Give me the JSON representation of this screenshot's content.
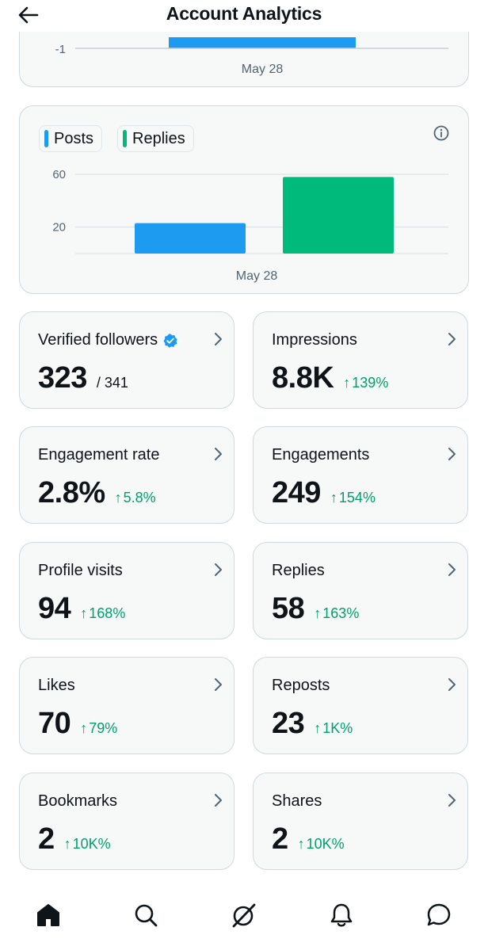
{
  "header": {
    "title": "Account Analytics",
    "back_icon": "back-arrow-icon"
  },
  "colors": {
    "posts": "#1d9bf0",
    "replies": "#00ba7c",
    "positive": "#00a06a",
    "border": "#cfd9de",
    "card_bg": "#f7f9f9"
  },
  "top_chart": {
    "y_tick": "-1",
    "x_label": "May 28"
  },
  "chart_data": {
    "type": "bar",
    "categories": [
      "May 28"
    ],
    "series": [
      {
        "name": "Posts",
        "values": [
          23
        ]
      },
      {
        "name": "Replies",
        "values": [
          58
        ]
      }
    ],
    "y_ticks": [
      20,
      60
    ],
    "y_tick_labels": [
      "20",
      "60"
    ],
    "ylim": [
      0,
      60
    ],
    "grid": true,
    "legend": "top-left"
  },
  "legend": {
    "posts": "Posts",
    "replies": "Replies"
  },
  "stats": [
    {
      "label": "Verified followers",
      "value": "323",
      "total": "/ 341",
      "change": "",
      "verified": true
    },
    {
      "label": "Impressions",
      "value": "8.8K",
      "change": "139%"
    },
    {
      "label": "Engagement rate",
      "value": "2.8%",
      "change": "5.8%"
    },
    {
      "label": "Engagements",
      "value": "249",
      "change": "154%"
    },
    {
      "label": "Profile visits",
      "value": "94",
      "change": "168%"
    },
    {
      "label": "Replies",
      "value": "58",
      "change": "163%"
    },
    {
      "label": "Likes",
      "value": "70",
      "change": "79%"
    },
    {
      "label": "Reposts",
      "value": "23",
      "change": "1K%"
    },
    {
      "label": "Bookmarks",
      "value": "2",
      "change": "10K%"
    },
    {
      "label": "Shares",
      "value": "2",
      "change": "10K%"
    }
  ],
  "nav": [
    "home-icon",
    "search-icon",
    "grok-icon",
    "notifications-icon",
    "messages-icon"
  ]
}
